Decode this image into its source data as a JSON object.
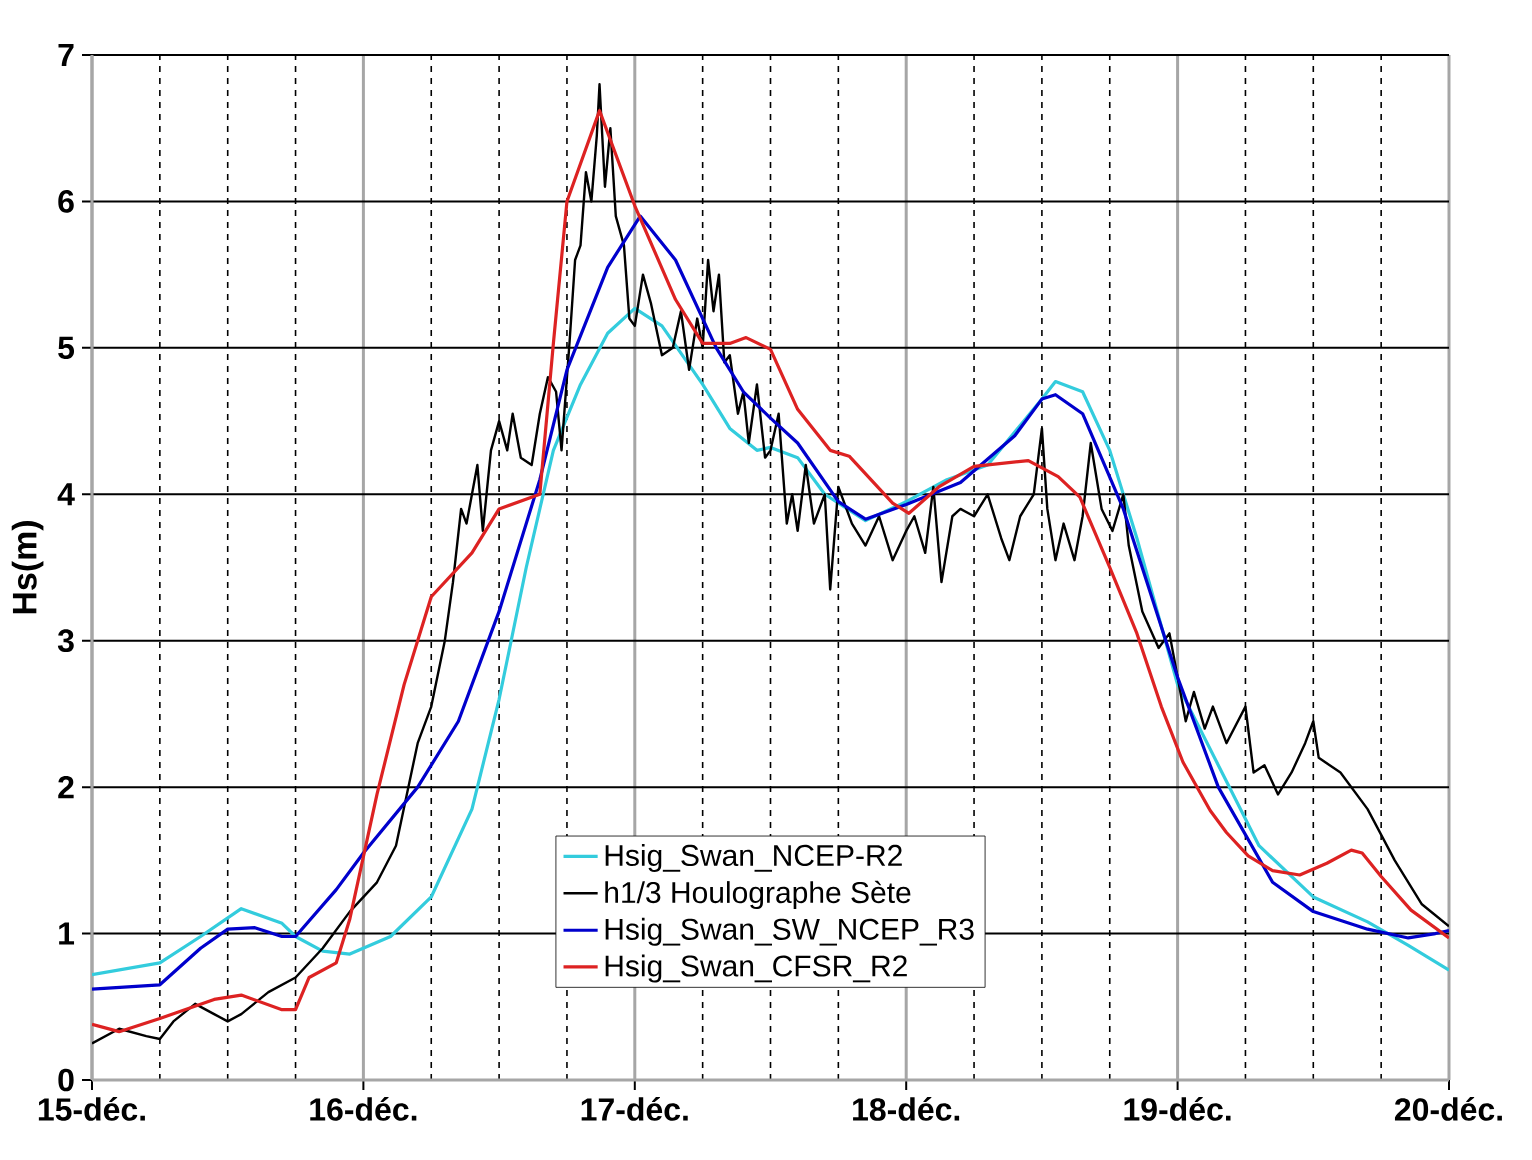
{
  "chart_data": {
    "type": "line",
    "ylabel": "Hs(m)",
    "xlim": [
      15,
      20
    ],
    "ylim": [
      0,
      7
    ],
    "xticks": [
      {
        "value": 15,
        "label": "15-déc."
      },
      {
        "value": 16,
        "label": "16-déc."
      },
      {
        "value": 17,
        "label": "17-déc."
      },
      {
        "value": 18,
        "label": "18-déc."
      },
      {
        "value": 19,
        "label": "19-déc."
      },
      {
        "value": 20,
        "label": "20-déc."
      }
    ],
    "yticks": [
      0,
      1,
      2,
      3,
      4,
      5,
      6,
      7
    ],
    "grid": true,
    "legend": "bottom",
    "marker": "none",
    "line_style": "solid",
    "series": [
      {
        "name": "Hsig_Swan_NCEP-R2",
        "color": "#33ccdd",
        "x": [
          15.0,
          15.25,
          15.4,
          15.55,
          15.7,
          15.75,
          15.85,
          15.95,
          16.1,
          16.25,
          16.4,
          16.5,
          16.6,
          16.7,
          16.8,
          16.9,
          17.0,
          17.1,
          17.25,
          17.35,
          17.45,
          17.5,
          17.6,
          17.7,
          17.85,
          18.0,
          18.15,
          18.3,
          18.5,
          18.55,
          18.65,
          18.75,
          18.85,
          19.0,
          19.15,
          19.3,
          19.5,
          19.7,
          19.85,
          20.0
        ],
        "values": [
          0.72,
          0.8,
          0.98,
          1.17,
          1.07,
          0.98,
          0.88,
          0.86,
          0.98,
          1.25,
          1.85,
          2.6,
          3.5,
          4.3,
          4.75,
          5.1,
          5.27,
          5.15,
          4.75,
          4.45,
          4.3,
          4.32,
          4.25,
          4.0,
          3.82,
          3.95,
          4.1,
          4.2,
          4.65,
          4.77,
          4.7,
          4.3,
          3.7,
          2.7,
          2.15,
          1.6,
          1.25,
          1.08,
          0.92,
          0.75
        ]
      },
      {
        "name": "h1/3 Houlographe Sète",
        "color": "#000000",
        "x": [
          15.0,
          15.1,
          15.2,
          15.25,
          15.3,
          15.38,
          15.45,
          15.5,
          15.55,
          15.65,
          15.75,
          15.85,
          15.95,
          16.05,
          16.12,
          16.2,
          16.25,
          16.3,
          16.33,
          16.36,
          16.38,
          16.4,
          16.42,
          16.44,
          16.47,
          16.5,
          16.53,
          16.55,
          16.58,
          16.62,
          16.65,
          16.68,
          16.71,
          16.73,
          16.76,
          16.78,
          16.8,
          16.82,
          16.84,
          16.86,
          16.87,
          16.89,
          16.91,
          16.93,
          16.96,
          16.98,
          17.0,
          17.03,
          17.06,
          17.1,
          17.14,
          17.17,
          17.2,
          17.23,
          17.25,
          17.27,
          17.29,
          17.31,
          17.33,
          17.35,
          17.38,
          17.4,
          17.42,
          17.45,
          17.48,
          17.5,
          17.53,
          17.56,
          17.58,
          17.6,
          17.63,
          17.66,
          17.7,
          17.72,
          17.75,
          17.8,
          17.85,
          17.9,
          17.95,
          18.0,
          18.03,
          18.07,
          18.1,
          18.13,
          18.17,
          18.2,
          18.25,
          18.3,
          18.35,
          18.38,
          18.42,
          18.47,
          18.5,
          18.52,
          18.55,
          18.58,
          18.62,
          18.65,
          18.68,
          18.72,
          18.76,
          18.8,
          18.82,
          18.87,
          18.93,
          18.97,
          19.0,
          19.03,
          19.06,
          19.1,
          19.13,
          19.18,
          19.25,
          19.28,
          19.32,
          19.37,
          19.42,
          19.47,
          19.5,
          19.52,
          19.6,
          19.7,
          19.8,
          19.9,
          20.0
        ],
        "values": [
          0.25,
          0.35,
          0.3,
          0.28,
          0.4,
          0.52,
          0.45,
          0.4,
          0.45,
          0.6,
          0.7,
          0.9,
          1.15,
          1.35,
          1.6,
          2.3,
          2.55,
          3.0,
          3.4,
          3.9,
          3.8,
          4.0,
          4.2,
          3.75,
          4.3,
          4.5,
          4.3,
          4.55,
          4.25,
          4.2,
          4.55,
          4.8,
          4.7,
          4.3,
          5.05,
          5.6,
          5.7,
          6.2,
          6.0,
          6.45,
          6.8,
          6.1,
          6.5,
          5.9,
          5.7,
          5.2,
          5.15,
          5.5,
          5.3,
          4.95,
          5.0,
          5.25,
          4.85,
          5.2,
          5.0,
          5.6,
          5.25,
          5.5,
          4.9,
          4.95,
          4.55,
          4.7,
          4.35,
          4.75,
          4.25,
          4.3,
          4.55,
          3.8,
          4.0,
          3.75,
          4.2,
          3.8,
          4.0,
          3.35,
          4.05,
          3.8,
          3.65,
          3.85,
          3.55,
          3.75,
          3.85,
          3.6,
          4.05,
          3.4,
          3.85,
          3.9,
          3.85,
          4.0,
          3.7,
          3.55,
          3.85,
          4.0,
          4.45,
          3.9,
          3.55,
          3.8,
          3.55,
          3.85,
          4.35,
          3.9,
          3.75,
          4.0,
          3.65,
          3.2,
          2.95,
          3.05,
          2.75,
          2.45,
          2.65,
          2.4,
          2.55,
          2.3,
          2.55,
          2.1,
          2.15,
          1.95,
          2.1,
          2.3,
          2.45,
          2.2,
          2.1,
          1.85,
          1.5,
          1.2,
          1.05
        ]
      },
      {
        "name": "Hsig_Swan_SW_NCEP_R3",
        "color": "#0000cc",
        "x": [
          15.0,
          15.25,
          15.4,
          15.5,
          15.6,
          15.7,
          15.75,
          15.9,
          16.0,
          16.2,
          16.35,
          16.5,
          16.65,
          16.75,
          16.9,
          17.02,
          17.15,
          17.3,
          17.4,
          17.5,
          17.6,
          17.75,
          17.85,
          18.0,
          18.2,
          18.4,
          18.5,
          18.55,
          18.65,
          18.8,
          19.0,
          19.15,
          19.35,
          19.5,
          19.7,
          19.85,
          19.95,
          20.0
        ],
        "values": [
          0.62,
          0.65,
          0.9,
          1.03,
          1.04,
          0.98,
          0.98,
          1.3,
          1.55,
          2.0,
          2.45,
          3.2,
          4.1,
          4.85,
          5.55,
          5.9,
          5.6,
          5.0,
          4.7,
          4.52,
          4.35,
          3.95,
          3.83,
          3.93,
          4.08,
          4.4,
          4.65,
          4.68,
          4.55,
          3.9,
          2.75,
          2.0,
          1.35,
          1.15,
          1.03,
          0.97,
          1.0,
          1.02
        ]
      },
      {
        "name": "Hsig_Swan_CFSR_R2",
        "color": "#dd2222",
        "x": [
          15.0,
          15.1,
          15.25,
          15.45,
          15.55,
          15.7,
          15.75,
          15.8,
          15.9,
          15.95,
          16.05,
          16.15,
          16.25,
          16.4,
          16.5,
          16.65,
          16.7,
          16.75,
          16.87,
          17.0,
          17.15,
          17.25,
          17.35,
          17.41,
          17.5,
          17.6,
          17.72,
          17.79,
          17.95,
          18.01,
          18.12,
          18.25,
          18.45,
          18.56,
          18.64,
          18.75,
          18.85,
          18.94,
          19.02,
          19.12,
          19.18,
          19.26,
          19.35,
          19.45,
          19.55,
          19.64,
          19.68,
          19.75,
          19.86,
          20.0
        ],
        "values": [
          0.38,
          0.33,
          0.42,
          0.55,
          0.58,
          0.48,
          0.48,
          0.7,
          0.8,
          1.1,
          1.95,
          2.7,
          3.3,
          3.6,
          3.9,
          4.0,
          5.03,
          6.0,
          6.62,
          5.97,
          5.33,
          5.03,
          5.03,
          5.07,
          4.99,
          4.58,
          4.3,
          4.26,
          3.94,
          3.87,
          4.05,
          4.19,
          4.23,
          4.12,
          3.98,
          3.5,
          3.05,
          2.55,
          2.17,
          1.84,
          1.69,
          1.53,
          1.43,
          1.4,
          1.48,
          1.57,
          1.55,
          1.39,
          1.16,
          0.97
        ]
      }
    ]
  }
}
